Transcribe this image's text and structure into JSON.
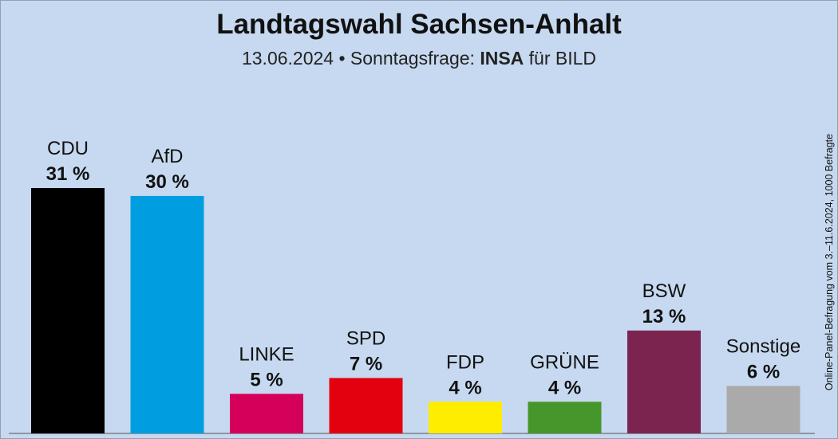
{
  "header": {
    "title": "Landtagswahl Sachsen-Anhalt",
    "subtitle_date": "13.06.2024 • Sonntagsfrage:",
    "subtitle_institute": "INSA",
    "subtitle_client": "für BILD"
  },
  "source_note": "Online-Panel-Befragung vom 3.–11.6.2024, 1000 Befragte",
  "chart_data": {
    "type": "bar",
    "categories": [
      "CDU",
      "AfD",
      "LINKE",
      "SPD",
      "FDP",
      "GRÜNE",
      "BSW",
      "Sonstige"
    ],
    "values": [
      31,
      30,
      5,
      7,
      4,
      4,
      13,
      6
    ],
    "value_labels": [
      "31 %",
      "30 %",
      "5 %",
      "7 %",
      "4 %",
      "4 %",
      "13 %",
      "6 %"
    ],
    "colors": [
      "#000000",
      "#009ee0",
      "#d4005a",
      "#e3000f",
      "#ffed00",
      "#46962b",
      "#7b2450",
      "#aaaaaa"
    ],
    "title": "Landtagswahl Sachsen-Anhalt",
    "unit": "%",
    "ylim": [
      0,
      31
    ],
    "grid": false,
    "legend": "none"
  }
}
